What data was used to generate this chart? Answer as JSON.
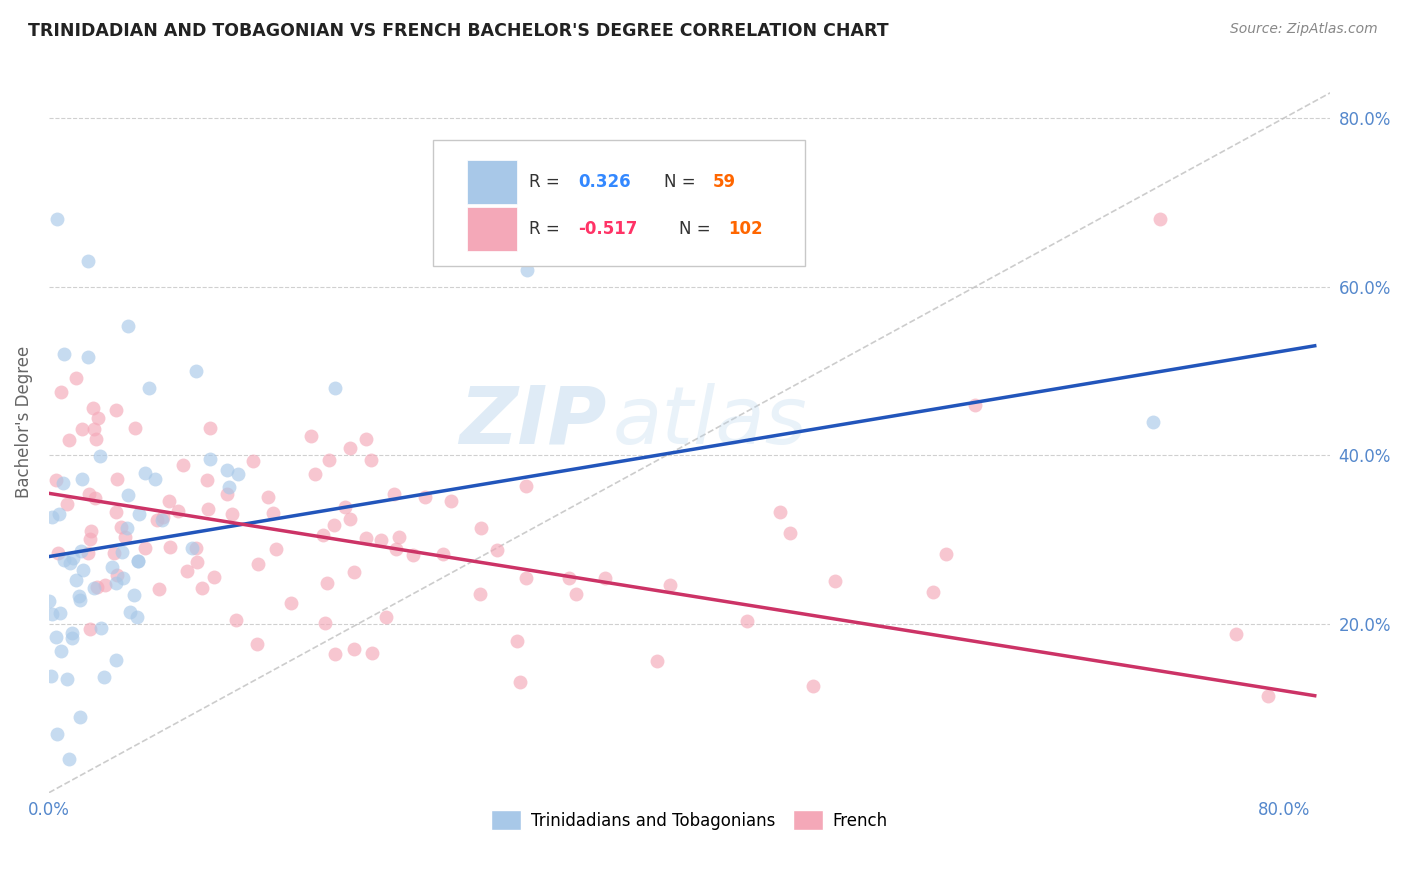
{
  "title": "TRINIDADIAN AND TOBAGONIAN VS FRENCH BACHELOR'S DEGREE CORRELATION CHART",
  "source": "Source: ZipAtlas.com",
  "ylabel_label": "Bachelor's Degree",
  "watermark_text": "ZIP",
  "watermark_text2": "atlas",
  "blue_scatter_color": "#a8c8e8",
  "pink_scatter_color": "#f4a8b8",
  "blue_line_color": "#2255bb",
  "pink_line_color": "#cc3366",
  "diagonal_color": "#c0c0c0",
  "grid_color": "#d0d0d0",
  "tick_color": "#5588cc",
  "title_color": "#222222",
  "source_color": "#888888",
  "legend_border_color": "#c8c8c8",
  "R_text_color": "#333333",
  "R_val_blue": "#3388ff",
  "R_val_pink": "#ff3366",
  "N_val_color": "#ff6600",
  "R_blue": 0.326,
  "N_blue": 59,
  "R_pink": -0.517,
  "N_pink": 102,
  "xlim": [
    0.0,
    0.83
  ],
  "ylim": [
    0.0,
    0.88
  ],
  "x_ticks_shown": [
    0.0,
    0.8
  ],
  "y_ticks_grid": [
    0.0,
    0.1,
    0.2,
    0.3,
    0.4,
    0.5,
    0.6,
    0.7,
    0.8
  ],
  "y_ticks_right_labels": {
    "0.2": "20.0%",
    "0.4": "40.0%",
    "0.6": "60.0%",
    "0.8": "80.0%"
  },
  "blue_trend_x": [
    0.0,
    0.82
  ],
  "blue_trend_y": [
    0.28,
    0.53
  ],
  "pink_trend_x": [
    0.0,
    0.82
  ],
  "pink_trend_y": [
    0.355,
    0.115
  ]
}
